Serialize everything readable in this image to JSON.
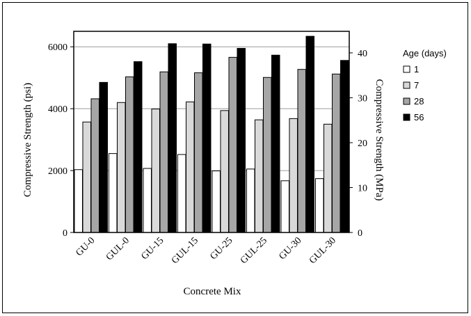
{
  "chart_data": {
    "type": "bar",
    "xlabel": "Concrete Mix",
    "ylabel": "Compressive Strength (psi)",
    "ylabel_right": "Compressive Strength (MPa)",
    "categories": [
      "GU-0",
      "GUL-0",
      "GU-15",
      "GUL-15",
      "GU-25",
      "GUL-25",
      "GU-30",
      "GUL-30"
    ],
    "ylim": [
      0,
      6500
    ],
    "y_ticks": [
      0,
      2000,
      4000,
      6000
    ],
    "ylim_right": [
      0,
      44.8
    ],
    "y_ticks_right": [
      0,
      10,
      20,
      30,
      40
    ],
    "grid": true,
    "legend_title": "Age (days)",
    "legend_position": "right",
    "series": [
      {
        "name": "1",
        "color": "#ffffff",
        "values": [
          2030,
          2550,
          2070,
          2520,
          1990,
          2050,
          1670,
          1740
        ]
      },
      {
        "name": "7",
        "color": "#d9d9d9",
        "values": [
          3570,
          4200,
          3990,
          4220,
          3940,
          3640,
          3680,
          3500
        ]
      },
      {
        "name": "28",
        "color": "#a6a6a6",
        "values": [
          4320,
          5030,
          5190,
          5160,
          5660,
          5010,
          5270,
          5120
        ]
      },
      {
        "name": "56",
        "color": "#000000",
        "values": [
          4850,
          5520,
          6100,
          6090,
          5950,
          5730,
          6340,
          5560
        ]
      }
    ]
  }
}
